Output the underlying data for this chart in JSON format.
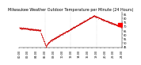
{
  "title": "Milwaukee Weather Outdoor Temperature per Minute (24 Hours)",
  "bg_color": "#ffffff",
  "line_color": "#cc0000",
  "highlight_color": "#ff0000",
  "grid_color": "#bbbbbb",
  "ylim": [
    44,
    88
  ],
  "yticks": [
    45,
    50,
    55,
    60,
    65,
    70,
    75,
    80,
    85
  ],
  "num_points": 1440,
  "title_fontsize": 3.5,
  "tick_fontsize": 2.5,
  "dot_size": 0.12
}
